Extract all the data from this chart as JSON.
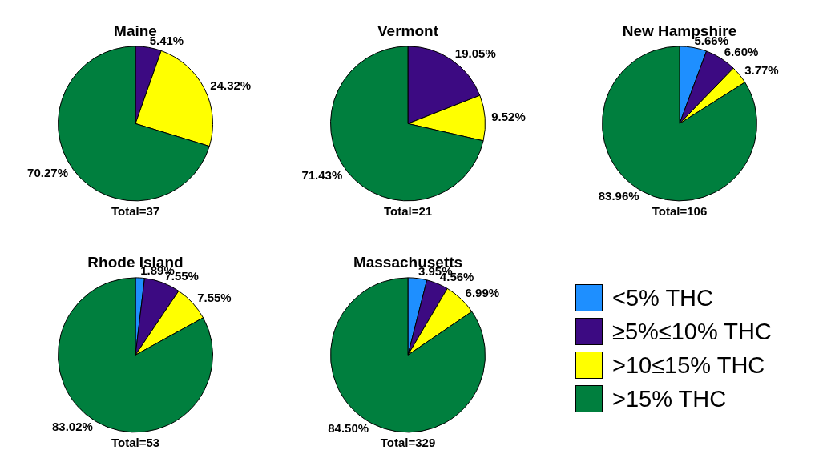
{
  "chart_data": [
    {
      "type": "pie",
      "title": "Maine",
      "categories": [
        null,
        null,
        null,
        null
      ],
      "values": [
        0,
        5.41,
        24.32,
        70.27
      ],
      "value_labels": [
        null,
        "5.41%",
        "24.32%",
        "70.27%"
      ],
      "colors": [
        "#1e8fff",
        "#3c0a82",
        "#ffff00",
        "#007f3e"
      ],
      "annotations": [
        "Total=37"
      ],
      "legend": false
    },
    {
      "type": "pie",
      "title": "Vermont",
      "categories": [
        null,
        null,
        null,
        null
      ],
      "values": [
        0,
        19.05,
        9.52,
        71.43
      ],
      "value_labels": [
        null,
        "19.05%",
        "9.52%",
        "71.43%"
      ],
      "colors": [
        "#1e8fff",
        "#3c0a82",
        "#ffff00",
        "#007f3e"
      ],
      "annotations": [
        "Total=21"
      ],
      "legend": false
    },
    {
      "type": "pie",
      "title": "New Hampshire",
      "categories": [
        null,
        null,
        null,
        null
      ],
      "values": [
        5.66,
        6.6,
        3.77,
        83.96
      ],
      "value_labels": [
        "5.66%",
        "6.60%",
        "3.77%",
        "83.96%"
      ],
      "colors": [
        "#1e8fff",
        "#3c0a82",
        "#ffff00",
        "#007f3e"
      ],
      "annotations": [
        "Total=106"
      ],
      "legend": false
    },
    {
      "type": "pie",
      "title": "Rhode Island",
      "categories": [
        null,
        null,
        null,
        null
      ],
      "values": [
        1.89,
        7.55,
        7.55,
        83.02
      ],
      "value_labels": [
        "1.89%",
        "7.55%",
        "7.55%",
        "83.02%"
      ],
      "colors": [
        "#1e8fff",
        "#3c0a82",
        "#ffff00",
        "#007f3e"
      ],
      "annotations": [
        "Total=53"
      ],
      "legend": false
    },
    {
      "type": "pie",
      "title": "Massachusetts",
      "categories": [
        "<5% THC",
        "≥5%≤10% THC",
        ">10≤15% THC",
        ">15% THC"
      ],
      "values": [
        3.95,
        4.56,
        6.99,
        84.5
      ],
      "value_labels": [
        "3.95%",
        "4.56%",
        "6.99%",
        "84.50%"
      ],
      "colors": [
        "#1e8fff",
        "#3c0a82",
        "#ffff00",
        "#007f3e"
      ],
      "annotations": [
        "Total=329"
      ],
      "legend": "right"
    }
  ]
}
